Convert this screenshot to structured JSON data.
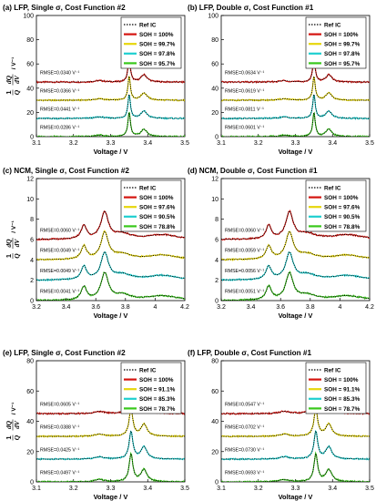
{
  "figure": {
    "y_axis_label": "1/Q dQ/dV / V⁻¹",
    "x_axis_label": "Voltage / V"
  },
  "chart_data": [
    {
      "id": "a",
      "type": "line",
      "title": "(a) LFP, Single σ, Cost Function #2",
      "chemistry": "LFP",
      "xlabel": "Voltage / V",
      "xlim": [
        3.1,
        3.5
      ],
      "ylim": [
        0,
        100
      ],
      "xticks": [
        "3.1",
        "3.2",
        "3.3",
        "3.4",
        "3.5"
      ],
      "yticks": [
        "0",
        "20",
        "40",
        "60",
        "80",
        "100"
      ],
      "legend": [
        "Ref IC",
        "SOH = 100%",
        "SOH = 99.7%",
        "SOH = 97.8%",
        "SOH = 95.7%"
      ],
      "series": [
        {
          "name": "SOH = 100%",
          "color": "#d4140f",
          "offset": 45,
          "rmse": "RMSE=0.0340 V⁻¹"
        },
        {
          "name": "SOH = 99.7%",
          "color": "#e6d60c",
          "offset": 30,
          "rmse": "RMSE=0.0366 V⁻¹"
        },
        {
          "name": "SOH = 97.8%",
          "color": "#1ecfd0",
          "offset": 15,
          "rmse": "RMSE=0.0441 V⁻¹"
        },
        {
          "name": "SOH = 95.7%",
          "color": "#39c81b",
          "offset": 0,
          "rmse": "RMSE=0.0286 V⁻¹"
        }
      ],
      "features": [
        {
          "center": 3.35,
          "width": 0.004,
          "height": 20
        },
        {
          "center": 3.39,
          "width": 0.01,
          "height": 6
        },
        {
          "center": 3.27,
          "width": 0.015,
          "height": 1.2
        }
      ]
    },
    {
      "id": "b",
      "type": "line",
      "title": "(b) LFP, Double σ, Cost Function #1",
      "chemistry": "LFP",
      "xlabel": "Voltage / V",
      "xlim": [
        3.1,
        3.5
      ],
      "ylim": [
        0,
        100
      ],
      "xticks": [
        "3.1",
        "3.2",
        "3.3",
        "3.4",
        "3.5"
      ],
      "yticks": [
        "0",
        "20",
        "40",
        "60",
        "80",
        "100"
      ],
      "legend": [
        "Ref IC",
        "SOH = 100%",
        "SOH = 99.7%",
        "SOH = 97.8%",
        "SOH = 95.7%"
      ],
      "series": [
        {
          "name": "SOH = 100%",
          "color": "#d4140f",
          "offset": 45,
          "rmse": "RMSE=0.0634 V⁻¹"
        },
        {
          "name": "SOH = 99.7%",
          "color": "#e6d60c",
          "offset": 30,
          "rmse": "RMSE=0.0619 V⁻¹"
        },
        {
          "name": "SOH = 97.8%",
          "color": "#1ecfd0",
          "offset": 15,
          "rmse": "RMSE=0.0811 V⁻¹"
        },
        {
          "name": "SOH = 95.7%",
          "color": "#39c81b",
          "offset": 0,
          "rmse": "RMSE=0.0601 V⁻¹"
        }
      ],
      "features": [
        {
          "center": 3.35,
          "width": 0.004,
          "height": 20
        },
        {
          "center": 3.39,
          "width": 0.01,
          "height": 6
        },
        {
          "center": 3.27,
          "width": 0.015,
          "height": 1.2
        }
      ]
    },
    {
      "id": "c",
      "type": "line",
      "title": "(c) NCM, Single σ, Cost Function #2",
      "chemistry": "NCM",
      "xlabel": "Voltage / V",
      "xlim": [
        3.2,
        4.2
      ],
      "ylim": [
        0,
        12
      ],
      "xticks": [
        "3.2",
        "3.4",
        "3.6",
        "3.8",
        "4",
        "4.2"
      ],
      "yticks": [
        "0",
        "2",
        "4",
        "6",
        "8",
        "10",
        "12"
      ],
      "legend": [
        "Ref IC",
        "SOH = 100%",
        "SOH = 97.6%",
        "SOH = 90.5%",
        "SOH = 78.8%"
      ],
      "series": [
        {
          "name": "SOH = 100%",
          "color": "#d4140f",
          "offset": 6.0,
          "rmse": "RMSE=0.0060 V⁻¹"
        },
        {
          "name": "SOH = 97.6%",
          "color": "#e6d60c",
          "offset": 4.0,
          "rmse": "RMSE=0.0049 V⁻¹"
        },
        {
          "name": "SOH = 90.5%",
          "color": "#1ecfd0",
          "offset": 2.0,
          "rmse": "RMSE=0.0049 V⁻¹"
        },
        {
          "name": "SOH = 78.8%",
          "color": "#39c81b",
          "offset": 0,
          "rmse": "RMSE=0.0041 V⁻¹"
        }
      ],
      "features": [
        {
          "center": 3.66,
          "width": 0.03,
          "height": 2.6
        },
        {
          "center": 3.52,
          "width": 0.022,
          "height": 1.3
        },
        {
          "center": 3.78,
          "width": 0.07,
          "height": 0.5
        },
        {
          "center": 4.05,
          "width": 0.12,
          "height": 0.45
        }
      ]
    },
    {
      "id": "d",
      "type": "line",
      "title": "(d) NCM, Double σ, Cost Function #1",
      "chemistry": "NCM",
      "xlabel": "Voltage / V",
      "xlim": [
        3.2,
        4.2
      ],
      "ylim": [
        0,
        12
      ],
      "xticks": [
        "3.2",
        "3.4",
        "3.6",
        "3.8",
        "4",
        "4.2"
      ],
      "yticks": [
        "0",
        "2",
        "4",
        "6",
        "8",
        "10",
        "12"
      ],
      "legend": [
        "Ref IC",
        "SOH = 100%",
        "SOH = 97.6%",
        "SOH = 90.5%",
        "SOH = 78.8%"
      ],
      "series": [
        {
          "name": "SOH = 100%",
          "color": "#d4140f",
          "offset": 6.0,
          "rmse": "RMSE=0.0060 V⁻¹"
        },
        {
          "name": "SOH = 97.6%",
          "color": "#e6d60c",
          "offset": 4.0,
          "rmse": "RMSE=0.0059 V⁻¹"
        },
        {
          "name": "SOH = 90.5%",
          "color": "#1ecfd0",
          "offset": 2.0,
          "rmse": "RMSE=0.0056 V⁻¹"
        },
        {
          "name": "SOH = 78.8%",
          "color": "#39c81b",
          "offset": 0,
          "rmse": "RMSE=0.0051 V⁻¹"
        }
      ],
      "features": [
        {
          "center": 3.66,
          "width": 0.03,
          "height": 2.6
        },
        {
          "center": 3.52,
          "width": 0.022,
          "height": 1.3
        },
        {
          "center": 3.78,
          "width": 0.07,
          "height": 0.5
        },
        {
          "center": 4.05,
          "width": 0.12,
          "height": 0.45
        }
      ]
    },
    {
      "id": "e",
      "type": "line",
      "title": "(e) LFP, Single σ, Cost Function #2",
      "chemistry": "LFP",
      "xlabel": "Voltage / V",
      "xlim": [
        3.1,
        3.5
      ],
      "ylim": [
        0,
        80
      ],
      "xticks": [
        "3.1",
        "3.2",
        "3.3",
        "3.4",
        "3.5"
      ],
      "yticks": [
        "0",
        "20",
        "40",
        "60",
        "80"
      ],
      "legend": [
        "Ref IC",
        "SOH = 100%",
        "SOH = 91.1%",
        "SOH = 85.3%",
        "SOH = 78.7%"
      ],
      "series": [
        {
          "name": "SOH = 100%",
          "color": "#d4140f",
          "offset": 45,
          "rmse": "RMSE=0.0605 V⁻¹"
        },
        {
          "name": "SOH = 91.1%",
          "color": "#e6d60c",
          "offset": 30,
          "rmse": "RMSE=0.0388 V⁻¹"
        },
        {
          "name": "SOH = 85.3%",
          "color": "#1ecfd0",
          "offset": 15,
          "rmse": "RMSE=0.0425 V⁻¹"
        },
        {
          "name": "SOH = 78.7%",
          "color": "#39c81b",
          "offset": 0,
          "rmse": "RMSE=0.0497 V⁻¹"
        }
      ],
      "features": [
        {
          "center": 3.355,
          "width": 0.006,
          "height": 18
        },
        {
          "center": 3.39,
          "width": 0.01,
          "height": 8
        },
        {
          "center": 3.27,
          "width": 0.015,
          "height": 1.5
        }
      ]
    },
    {
      "id": "f",
      "type": "line",
      "title": "(f) LFP, Double σ, Cost Function #1",
      "chemistry": "LFP",
      "xlabel": "Voltage / V",
      "xlim": [
        3.1,
        3.5
      ],
      "ylim": [
        0,
        80
      ],
      "xticks": [
        "3.1",
        "3.2",
        "3.3",
        "3.4",
        "3.5"
      ],
      "yticks": [
        "0",
        "20",
        "40",
        "60",
        "80"
      ],
      "legend": [
        "Ref IC",
        "SOH = 100%",
        "SOH = 91.1%",
        "SOH = 85.3%",
        "SOH = 78.7%"
      ],
      "series": [
        {
          "name": "SOH = 100%",
          "color": "#d4140f",
          "offset": 45,
          "rmse": "RMSE=0.0547 V⁻¹"
        },
        {
          "name": "SOH = 91.1%",
          "color": "#e6d60c",
          "offset": 30,
          "rmse": "RMSE=0.0702 V⁻¹"
        },
        {
          "name": "SOH = 85.3%",
          "color": "#1ecfd0",
          "offset": 15,
          "rmse": "RMSE=0.0730 V⁻¹"
        },
        {
          "name": "SOH = 78.7%",
          "color": "#39c81b",
          "offset": 0,
          "rmse": "RMSE=0.0693 V⁻¹"
        }
      ],
      "features": [
        {
          "center": 3.355,
          "width": 0.006,
          "height": 18
        },
        {
          "center": 3.39,
          "width": 0.01,
          "height": 8
        },
        {
          "center": 3.27,
          "width": 0.015,
          "height": 1.5
        }
      ]
    }
  ]
}
